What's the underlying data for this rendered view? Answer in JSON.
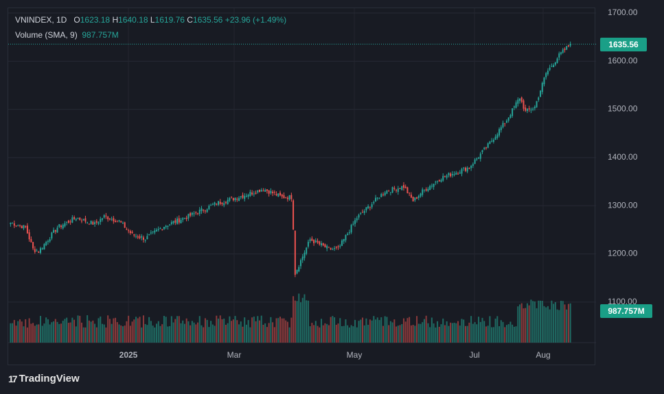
{
  "legend": {
    "symbol": "VNINDEX, 1D",
    "open_key": "O",
    "open": "1623.18",
    "high_key": "H",
    "high": "1640.18",
    "low_key": "L",
    "low": "1619.76",
    "close_key": "C",
    "close": "1635.56",
    "change": "+23.96 (+1.49%)",
    "volume_label": "Volume (SMA, 9)",
    "volume_value": "987.757M"
  },
  "price_tag": "1635.56",
  "volume_tag": "987.757M",
  "brand": "TradingView",
  "colors": {
    "up": "#26a69a",
    "down": "#ef5350",
    "background": "#181b23",
    "grid": "#2a2e39",
    "text": "#d1d4dc"
  },
  "chart_data": {
    "type": "candlestick",
    "title": "VNINDEX, 1D",
    "y_ticks": [
      "1700.00",
      "1600.00",
      "1500.00",
      "1400.00",
      "1300.00",
      "1200.00",
      "1100.00"
    ],
    "x_ticks": [
      "2025",
      "Mar",
      "May",
      "Jul",
      "Aug"
    ],
    "ylim": [
      1000,
      1720
    ],
    "last_close": 1635.56,
    "last_volume": "987.757M",
    "grid": true,
    "series": [
      {
        "name": "VNINDEX",
        "type": "candlestick",
        "close_anchors": [
          [
            0,
            1265
          ],
          [
            8,
            1255
          ],
          [
            12,
            1210
          ],
          [
            15,
            1205
          ],
          [
            25,
            1255
          ],
          [
            35,
            1275
          ],
          [
            45,
            1262
          ],
          [
            50,
            1278
          ],
          [
            58,
            1268
          ],
          [
            65,
            1240
          ],
          [
            72,
            1232
          ],
          [
            82,
            1258
          ],
          [
            95,
            1278
          ],
          [
            110,
            1305
          ],
          [
            125,
            1322
          ],
          [
            135,
            1335
          ],
          [
            145,
            1318
          ],
          [
            150,
            1318
          ],
          [
            151,
            1255
          ],
          [
            152,
            1160
          ],
          [
            160,
            1230
          ],
          [
            170,
            1210
          ],
          [
            175,
            1210
          ],
          [
            185,
            1275
          ],
          [
            200,
            1330
          ],
          [
            210,
            1340
          ],
          [
            215,
            1310
          ],
          [
            220,
            1330
          ],
          [
            230,
            1358
          ],
          [
            245,
            1380
          ],
          [
            255,
            1425
          ],
          [
            265,
            1478
          ],
          [
            272,
            1525
          ],
          [
            275,
            1495
          ],
          [
            280,
            1505
          ],
          [
            286,
            1575
          ],
          [
            293,
            1612
          ],
          [
            299,
            1635.56
          ]
        ]
      },
      {
        "name": "Volume",
        "type": "histogram",
        "note": "daily volume bars, colored by candle direction"
      }
    ]
  }
}
